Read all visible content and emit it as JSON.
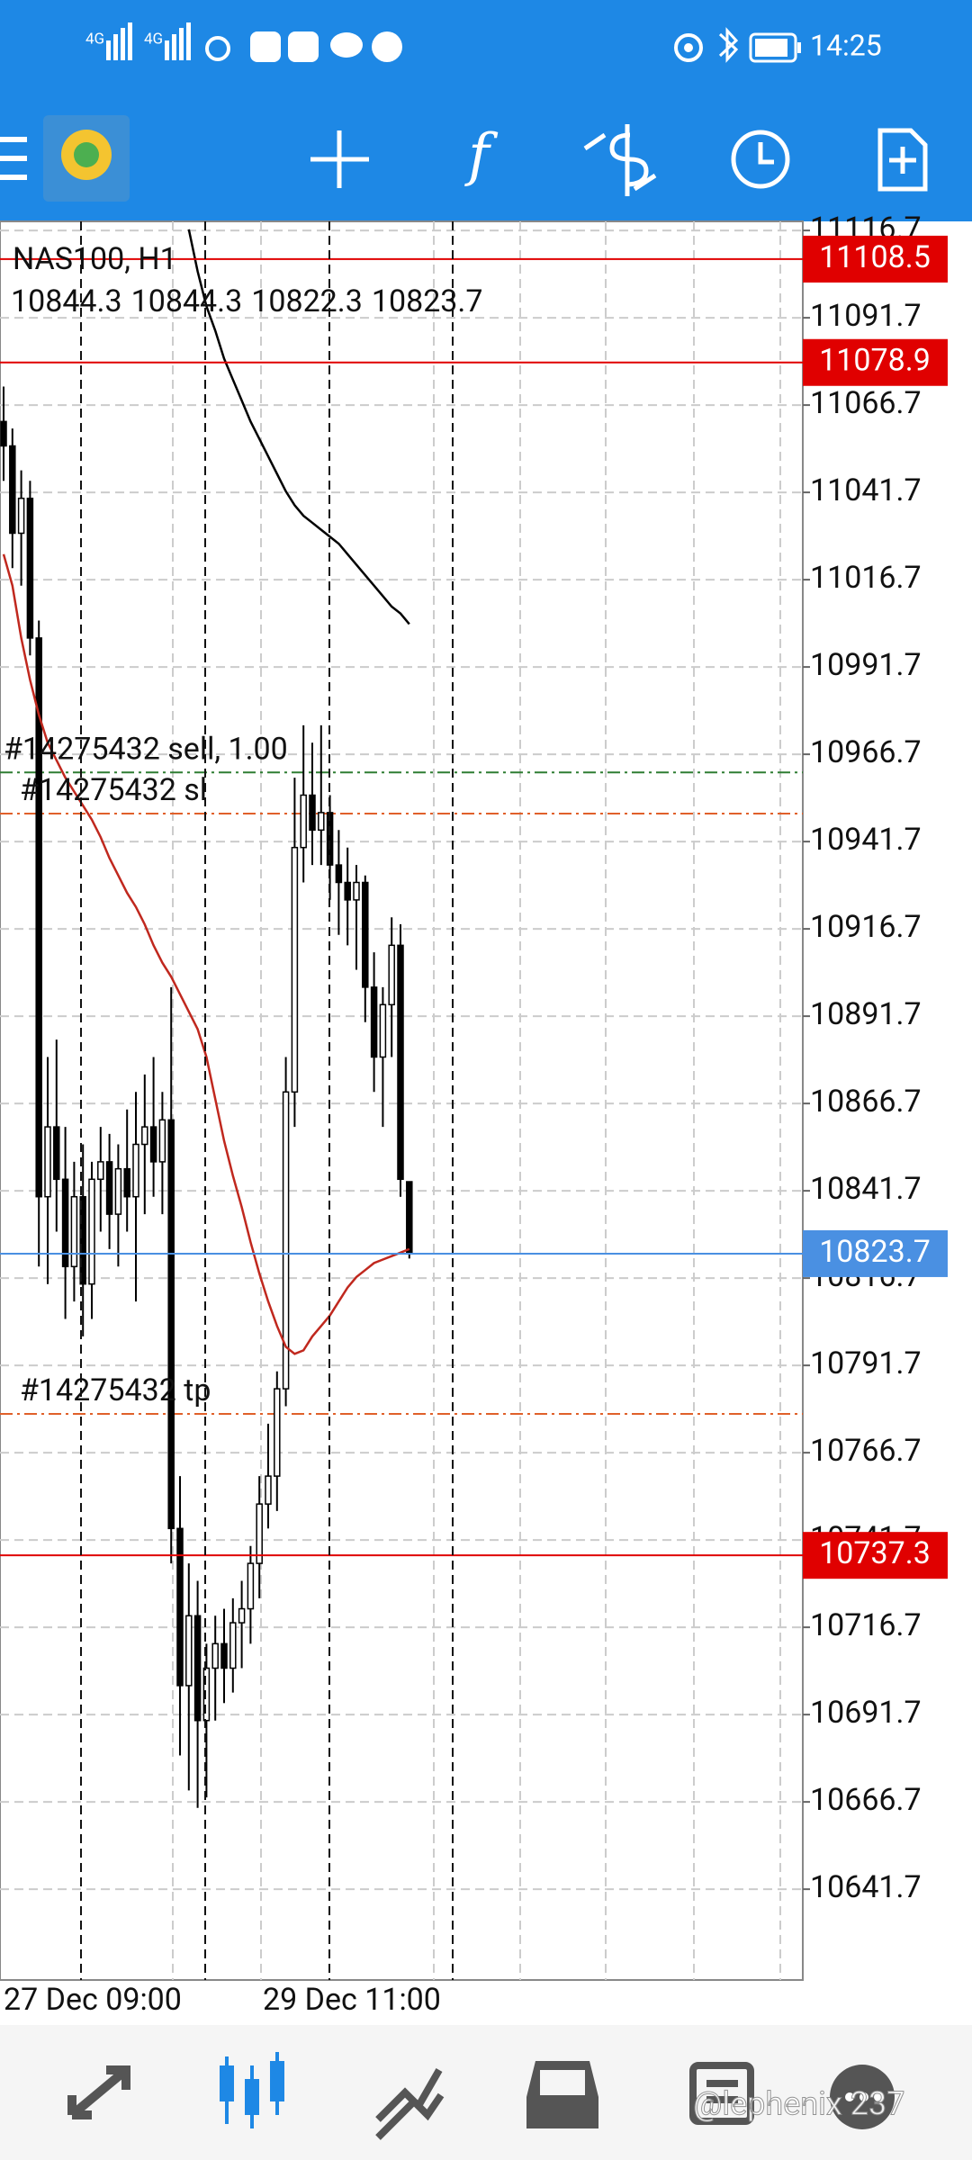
{
  "status_bar": {
    "time": "14:25",
    "network": [
      "4G",
      "4G"
    ]
  },
  "chart_data": {
    "type": "candlestick",
    "symbol": "NAS100, H1",
    "candles": [
      [
        11062,
        11072,
        11045,
        11055
      ],
      [
        11055,
        11060,
        11020,
        11030
      ],
      [
        11030,
        11048,
        11015,
        11040
      ],
      [
        11040,
        11045,
        10995,
        11000
      ],
      [
        11000,
        11005,
        10820,
        10840
      ],
      [
        10840,
        10880,
        10815,
        10860
      ],
      [
        10860,
        10885,
        10830,
        10845
      ],
      [
        10845,
        10860,
        10805,
        10820
      ],
      [
        10820,
        10850,
        10810,
        10840
      ],
      [
        10840,
        10855,
        10800,
        10815
      ],
      [
        10815,
        10850,
        10805,
        10845
      ],
      [
        10845,
        10860,
        10830,
        10850
      ],
      [
        10850,
        10858,
        10825,
        10835
      ],
      [
        10835,
        10855,
        10820,
        10848
      ],
      [
        10848,
        10865,
        10830,
        10840
      ],
      [
        10840,
        10870,
        10810,
        10855
      ],
      [
        10855,
        10875,
        10835,
        10860
      ],
      [
        10860,
        10880,
        10840,
        10850
      ],
      [
        10850,
        10870,
        10835,
        10862
      ],
      [
        10862,
        10900,
        10735,
        10745
      ],
      [
        10745,
        10760,
        10680,
        10700
      ],
      [
        10700,
        10735,
        10670,
        10720
      ],
      [
        10720,
        10730,
        10665,
        10690
      ],
      [
        10690,
        10712,
        10668,
        10705
      ],
      [
        10705,
        10720,
        10690,
        10712
      ],
      [
        10712,
        10722,
        10695,
        10705
      ],
      [
        10705,
        10725,
        10698,
        10718
      ],
      [
        10718,
        10730,
        10705,
        10722
      ],
      [
        10722,
        10740,
        10712,
        10735
      ],
      [
        10735,
        10760,
        10725,
        10752
      ],
      [
        10752,
        10775,
        10745,
        10760
      ],
      [
        10760,
        10790,
        10750,
        10785
      ],
      [
        10785,
        10880,
        10780,
        10870
      ],
      [
        10870,
        10960,
        10860,
        10940
      ],
      [
        10940,
        10975,
        10930,
        10955
      ],
      [
        10955,
        10970,
        10935,
        10945
      ],
      [
        10945,
        10975,
        10935,
        10950
      ],
      [
        10950,
        10955,
        10925,
        10935
      ],
      [
        10935,
        10945,
        10915,
        10930
      ],
      [
        10930,
        10940,
        10912,
        10925
      ],
      [
        10925,
        10935,
        10905,
        10930
      ],
      [
        10930,
        10932,
        10890,
        10900
      ],
      [
        10900,
        10910,
        10870,
        10880
      ],
      [
        10880,
        10900,
        10860,
        10895
      ],
      [
        10895,
        10920,
        10880,
        10912
      ],
      [
        10912,
        10918,
        10840,
        10845
      ],
      [
        10844.3,
        10844.3,
        10822.3,
        10823.7
      ]
    ],
    "moving_averages": [
      {
        "color": "#000000",
        "values": [
          null,
          null,
          null,
          null,
          null,
          null,
          null,
          null,
          null,
          null,
          null,
          null,
          null,
          null,
          null,
          null,
          null,
          null,
          null,
          null,
          null,
          11117,
          11105,
          11095,
          11088,
          11080,
          11074,
          11068,
          11062,
          11057,
          11052,
          11047,
          11042,
          11038,
          11035,
          11033,
          11031,
          11029,
          11027,
          11024,
          11021,
          11018,
          11015,
          11012,
          11009,
          11007,
          11004
        ]
      },
      {
        "color": "#c0281e",
        "values": [
          11024,
          11015,
          11000,
          10988,
          10978,
          10970,
          10965,
          10960,
          10956,
          10952,
          10948,
          10943,
          10937,
          10932,
          10927,
          10923,
          10918,
          10912,
          10907,
          10903,
          10898,
          10893,
          10888,
          10880,
          10868,
          10856,
          10846,
          10837,
          10827,
          10818,
          10810,
          10803,
          10797,
          10795,
          10796,
          10800,
          10803,
          10806,
          10810,
          10814,
          10817,
          10819,
          10821,
          10822,
          10823,
          10824,
          10825
        ]
      }
    ],
    "ylim": [
      10615.7,
      11119.3
    ],
    "yticks": [
      11116.7,
      11091.7,
      11066.7,
      11041.7,
      11016.7,
      10991.7,
      10966.7,
      10941.7,
      10916.7,
      10891.7,
      10866.7,
      10841.7,
      10816.7,
      10791.7,
      10766.7,
      10741.7,
      10716.7,
      10691.7,
      10666.7,
      10641.7
    ],
    "xticks": [
      "27 Dec 09:00",
      "29 Dec 11:00"
    ],
    "levels": [
      {
        "value": 11108.5,
        "color": "#e00000"
      },
      {
        "value": 11078.9,
        "color": "#e00000"
      },
      {
        "value": 10823.7,
        "color": "#4a90e2"
      },
      {
        "value": 10737.3,
        "color": "#e00000"
      }
    ],
    "orders": [
      {
        "label": "#14275432 sell, 1.00",
        "value": 10961.5,
        "color": "#2e7d32"
      },
      {
        "label": "#14275432 sl",
        "value": 10949.7,
        "color": "#e0602a"
      },
      {
        "label": "#14275432 tp",
        "value": 10777.8,
        "color": "#e0602a"
      }
    ],
    "grid": true
  },
  "watermark": "@lephenix 237"
}
